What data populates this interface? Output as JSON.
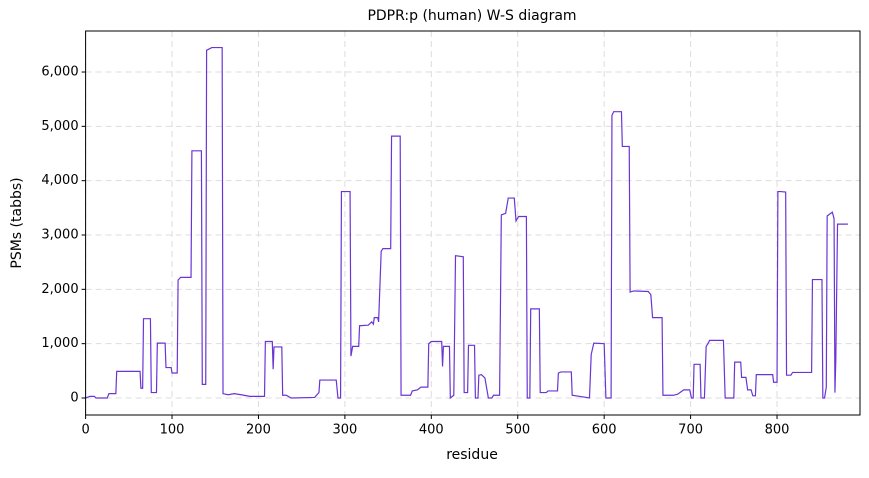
{
  "chart_data": {
    "type": "line",
    "title": "PDPR:p (human) W-S diagram",
    "x_label": "residue",
    "y_label": "PSMs (tabbs)",
    "x": [
      0,
      5,
      10,
      12,
      25,
      27,
      35,
      36,
      63,
      64,
      66,
      67,
      75,
      76,
      82,
      83,
      92,
      93,
      99,
      100,
      106,
      107,
      110,
      122,
      123,
      134,
      135,
      139,
      140,
      146,
      158,
      159,
      165,
      172,
      180,
      190,
      195,
      207,
      208,
      216,
      217,
      218,
      227,
      228,
      232,
      238,
      265,
      270,
      271,
      290,
      292,
      295,
      296,
      306,
      307,
      309,
      316,
      317,
      327,
      331,
      333,
      334,
      338,
      339,
      342,
      344,
      353,
      354,
      364,
      365,
      376,
      378,
      384,
      388,
      396,
      397,
      400,
      412,
      413,
      414,
      421,
      422,
      426,
      428,
      437,
      438,
      442,
      443,
      450,
      451,
      454,
      455,
      458,
      462,
      466,
      470,
      472,
      479,
      481,
      486,
      489,
      496,
      498,
      501,
      510,
      511,
      514,
      515,
      525,
      526,
      533,
      535,
      540,
      546,
      547,
      550,
      562,
      563,
      583,
      585,
      588,
      600,
      602,
      608,
      609,
      611,
      620,
      621,
      629,
      630,
      634,
      651,
      654,
      656,
      667,
      668,
      680,
      685,
      692,
      699,
      701,
      703,
      704,
      711,
      712,
      716,
      718,
      720,
      722,
      738,
      740,
      750,
      751,
      758,
      759,
      764,
      766,
      770,
      772,
      775,
      776,
      795,
      796,
      800,
      801,
      804,
      810,
      811,
      816,
      818,
      840,
      841,
      852,
      853,
      855,
      857,
      858,
      864,
      866,
      867,
      868,
      870,
      882
    ],
    "series": [
      {
        "color": "#6a35d4",
        "values": [
          0,
          30,
          30,
          0,
          0,
          80,
          80,
          490,
          490,
          180,
          180,
          1460,
          1460,
          100,
          100,
          1010,
          1010,
          560,
          560,
          460,
          460,
          2170,
          2220,
          2220,
          4550,
          4550,
          250,
          250,
          6400,
          6450,
          6450,
          80,
          60,
          80,
          60,
          30,
          30,
          30,
          1040,
          1040,
          530,
          940,
          940,
          50,
          50,
          0,
          10,
          100,
          330,
          330,
          0,
          0,
          3800,
          3800,
          770,
          950,
          950,
          1330,
          1340,
          1400,
          1360,
          1480,
          1480,
          1400,
          2700,
          2750,
          2750,
          4820,
          4820,
          50,
          50,
          130,
          150,
          200,
          200,
          1000,
          1040,
          1040,
          580,
          950,
          950,
          0,
          50,
          2620,
          2600,
          100,
          100,
          970,
          970,
          0,
          0,
          420,
          430,
          370,
          0,
          0,
          50,
          50,
          3370,
          3400,
          3680,
          3680,
          3260,
          3340,
          3340,
          0,
          0,
          1640,
          1640,
          100,
          100,
          130,
          130,
          130,
          460,
          480,
          480,
          50,
          0,
          800,
          1010,
          1000,
          0,
          0,
          5200,
          5270,
          5270,
          4630,
          4630,
          1950,
          1970,
          1960,
          1900,
          1480,
          1480,
          50,
          50,
          70,
          150,
          150,
          0,
          0,
          620,
          620,
          0,
          0,
          950,
          1000,
          1060,
          1060,
          0,
          0,
          660,
          660,
          380,
          380,
          150,
          150,
          40,
          40,
          430,
          430,
          290,
          290,
          3800,
          3800,
          3790,
          420,
          420,
          470,
          470,
          2180,
          2180,
          0,
          0,
          200,
          3350,
          3420,
          3300,
          100,
          700,
          3200,
          3200
        ]
      }
    ],
    "xlim": [
      0,
      896
    ],
    "ylim": [
      -313,
      6755
    ],
    "xticks": [
      0,
      100,
      200,
      300,
      400,
      500,
      600,
      700,
      800
    ],
    "yticks": [
      0,
      {
        "value": 1000,
        "label": "1,000"
      },
      {
        "value": 2000,
        "label": "2,000"
      },
      {
        "value": 3000,
        "label": "3,000"
      },
      {
        "value": 4000,
        "label": "4,000"
      },
      {
        "value": 5000,
        "label": "5,000"
      },
      {
        "value": 6000,
        "label": "6,000"
      }
    ],
    "grid": true
  }
}
